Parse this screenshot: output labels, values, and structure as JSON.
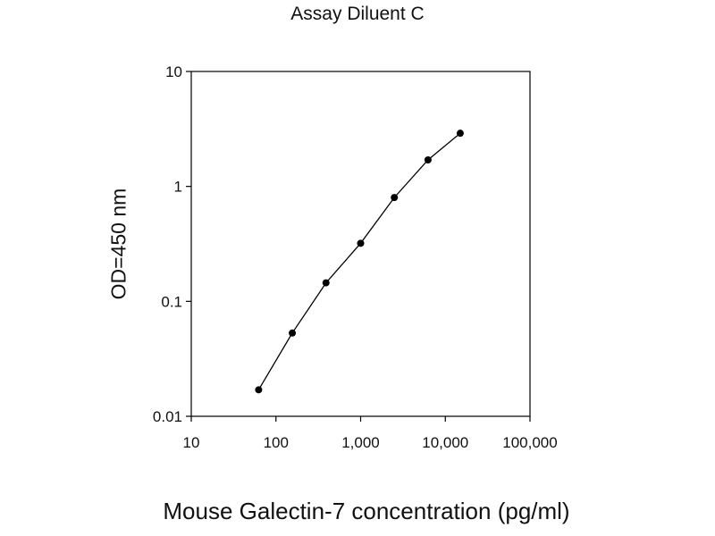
{
  "chart_data": {
    "type": "line",
    "title": "Assay Diluent C",
    "xlabel": "Mouse Galectin-7 concentration (pg/ml)",
    "ylabel": "OD=450 nm",
    "xscale": "log",
    "yscale": "log",
    "xlim": [
      10,
      100000
    ],
    "ylim": [
      0.01,
      10
    ],
    "xticks": [
      10,
      100,
      1000,
      10000,
      100000
    ],
    "xtick_labels": [
      "10",
      "100",
      "1,000",
      "10,000",
      "100,000"
    ],
    "yticks": [
      0.01,
      0.1,
      1,
      10
    ],
    "ytick_labels": [
      "0.01",
      "0.1",
      "1",
      "10"
    ],
    "grid": false,
    "series": [
      {
        "x": [
          62.5,
          156,
          390,
          1000,
          2500,
          6250,
          15000
        ],
        "values": [
          0.017,
          0.053,
          0.145,
          0.32,
          0.8,
          1.7,
          2.9
        ],
        "color": "#000000",
        "marker": "circle"
      }
    ]
  }
}
